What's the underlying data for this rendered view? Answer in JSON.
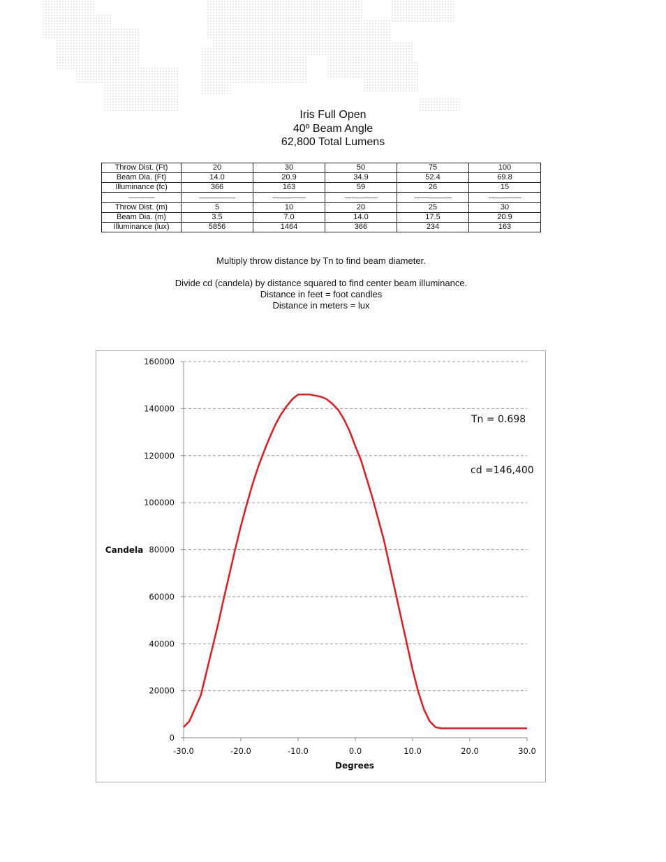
{
  "header": {
    "title_lines": [
      "Iris Full Open",
      "40º Beam Angle",
      "62,800 Total Lumens"
    ]
  },
  "table": {
    "rows": [
      {
        "label": "Throw Dist. (Ft)",
        "values": [
          "20",
          "30",
          "50",
          "75",
          "100"
        ]
      },
      {
        "label": "Beam Dia. (Ft)",
        "values": [
          "14.0",
          "20.9",
          "34.9",
          "52.4",
          "69.8"
        ]
      },
      {
        "label": "Illuminance (fc)",
        "values": [
          "366",
          "163",
          "59",
          "26",
          "15"
        ]
      },
      {
        "label": "---------------",
        "values": [
          "——————",
          "---——---------",
          "-----——-------",
          "--------———---",
          "---——---------"
        ]
      },
      {
        "label": "Throw Dist. (m)",
        "values": [
          "5",
          "10",
          "20",
          "25",
          "30"
        ]
      },
      {
        "label": "Beam Dia. (m)",
        "values": [
          "3.5",
          "7.0",
          "14.0",
          "17.5",
          "20.9"
        ]
      },
      {
        "label": "Illuminance (lux)",
        "values": [
          "5856",
          "1464",
          "366",
          "234",
          "163"
        ]
      }
    ]
  },
  "notes": {
    "tn_note": "Multiply throw distance by Tn to find beam diameter.",
    "cd_note": "Divide cd (candela) by distance squared to find center beam illuminance.",
    "feet_note": "Distance in feet = foot candles",
    "meters_note": "Distance in meters = lux"
  },
  "chart_data": {
    "type": "line",
    "title": "",
    "xlabel": "Degrees",
    "ylabel": "Candela",
    "xlim": [
      -30,
      30
    ],
    "ylim": [
      0,
      160000
    ],
    "xticks": [
      "-30.0",
      "-20.0",
      "-10.0",
      "0.0",
      "10.0",
      "20.0",
      "30.0"
    ],
    "xtick_values": [
      -30,
      -20,
      -10,
      0,
      10,
      20,
      30
    ],
    "yticks": [
      "0",
      "20000",
      "40000",
      "60000",
      "80000",
      "100000",
      "120000",
      "140000",
      "160000"
    ],
    "ytick_values": [
      0,
      20000,
      40000,
      60000,
      80000,
      100000,
      120000,
      140000,
      160000
    ],
    "grid": true,
    "series": [
      {
        "color": "#e8191e",
        "x": [
          -30,
          -29,
          -28,
          -27,
          -26,
          -25,
          -24,
          -23,
          -22,
          -21,
          -20,
          -19,
          -18,
          -17,
          -16,
          -15,
          -14,
          -13,
          -12,
          -11,
          -10,
          -9,
          -8,
          -7,
          -6,
          -5,
          -4,
          -3,
          -2,
          -1,
          0,
          1,
          2,
          3,
          4,
          5,
          6,
          7,
          8,
          9,
          10,
          11,
          12,
          13,
          14,
          15,
          16,
          17,
          18,
          19,
          20,
          21,
          22,
          23,
          24,
          25,
          26,
          27,
          28,
          29,
          30
        ],
        "y": [
          4500,
          7000,
          12500,
          18000,
          28000,
          38000,
          48000,
          59000,
          69500,
          80000,
          90000,
          99000,
          107500,
          115000,
          121500,
          127500,
          133000,
          137500,
          141000,
          144000,
          146000,
          146000,
          146000,
          145500,
          145000,
          144000,
          142000,
          139500,
          135500,
          130500,
          124000,
          118000,
          110000,
          102000,
          93000,
          84000,
          73000,
          62000,
          51000,
          40000,
          29000,
          19500,
          12000,
          7000,
          4500,
          4000,
          4000,
          4000,
          4000,
          4000,
          4000,
          4000,
          4000,
          4000,
          4000,
          4000,
          4000,
          4000,
          4000,
          4000,
          4000
        ]
      }
    ],
    "annotations": [
      "Tn = 0.698",
      "cd =146,400"
    ]
  }
}
